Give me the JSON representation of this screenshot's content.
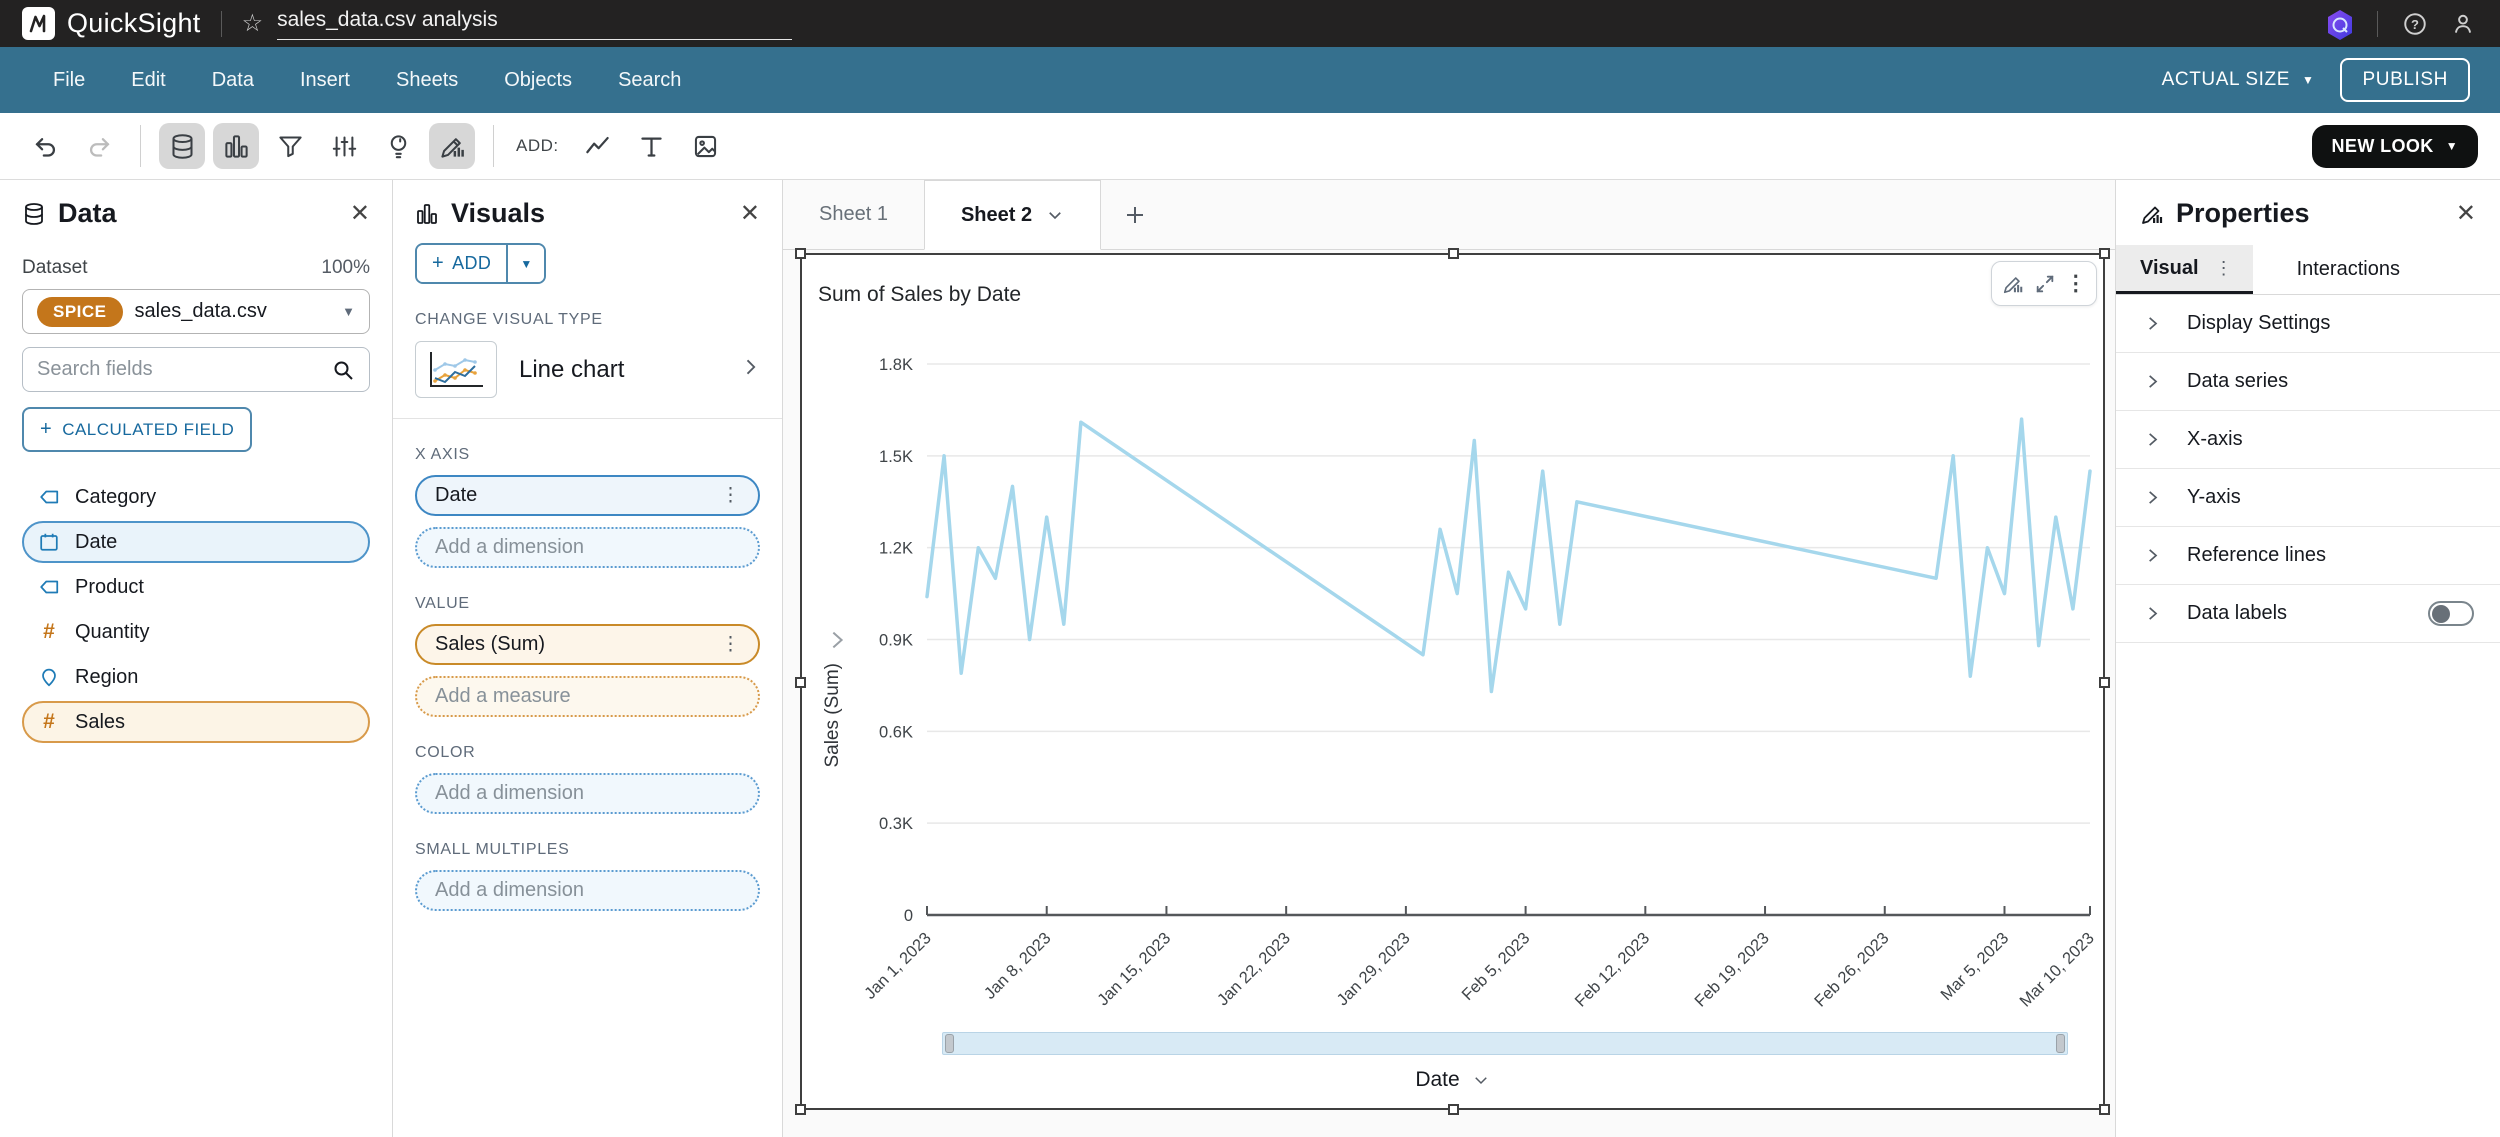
{
  "topbar": {
    "brand": "QuickSight",
    "title": "sales_data.csv analysis"
  },
  "menubar": {
    "items": [
      {
        "label": "File"
      },
      {
        "label": "Edit"
      },
      {
        "label": "Data"
      },
      {
        "label": "Insert"
      },
      {
        "label": "Sheets"
      },
      {
        "label": "Objects"
      },
      {
        "label": "Search"
      }
    ],
    "actual_size": "ACTUAL SIZE",
    "publish": "PUBLISH"
  },
  "toolbar": {
    "add_label": "ADD:",
    "new_look": "NEW LOOK"
  },
  "data_panel": {
    "title": "Data",
    "dataset_label": "Dataset",
    "dataset_progress": "100%",
    "spice_badge": "SPICE",
    "dataset_name": "sales_data.csv",
    "search_placeholder": "Search fields",
    "calculated_field_label": "CALCULATED FIELD",
    "fields": [
      {
        "name": "Category",
        "icon": "tag-icon",
        "selected": false
      },
      {
        "name": "Date",
        "icon": "calendar-icon",
        "selected": true
      },
      {
        "name": "Product",
        "icon": "tag-icon",
        "selected": false
      },
      {
        "name": "Quantity",
        "icon": "hash-icon",
        "selected": false
      },
      {
        "name": "Region",
        "icon": "pin-icon",
        "selected": false
      },
      {
        "name": "Sales",
        "icon": "hash-icon",
        "selected": true
      }
    ],
    "hash_glyph": "#"
  },
  "visuals_panel": {
    "title": "Visuals",
    "add_button": "ADD",
    "change_visual_type": "CHANGE VISUAL TYPE",
    "visual_type": "Line chart",
    "x_axis_label": "X AXIS",
    "x_axis_value": "Date",
    "x_axis_placeholder": "Add a dimension",
    "value_label": "VALUE",
    "value_value": "Sales (Sum)",
    "value_placeholder": "Add a measure",
    "color_label": "COLOR",
    "color_placeholder": "Add a dimension",
    "small_multiples_label": "SMALL MULTIPLES",
    "small_multiples_placeholder": "Add a dimension"
  },
  "sheet_tabs": {
    "tabs": [
      {
        "label": "Sheet 1",
        "active": false
      },
      {
        "label": "Sheet 2",
        "active": true
      }
    ]
  },
  "chart_data": {
    "type": "line",
    "title": "Sum of Sales by Date",
    "xlabel": "Date",
    "ylabel": "Sales (Sum)",
    "ylim": [
      0,
      1800
    ],
    "x_days_total": 68,
    "grid": true,
    "legend": false,
    "y_ticks": [
      {
        "value": 0,
        "label": "0"
      },
      {
        "value": 300,
        "label": "0.3K"
      },
      {
        "value": 600,
        "label": "0.6K"
      },
      {
        "value": 900,
        "label": "0.9K"
      },
      {
        "value": 1200,
        "label": "1.2K"
      },
      {
        "value": 1500,
        "label": "1.5K"
      },
      {
        "value": 1800,
        "label": "1.8K"
      }
    ],
    "x_ticks": [
      {
        "day": 0,
        "label": "Jan 1, 2023"
      },
      {
        "day": 7,
        "label": "Jan 8, 2023"
      },
      {
        "day": 14,
        "label": "Jan 15, 2023"
      },
      {
        "day": 21,
        "label": "Jan 22, 2023"
      },
      {
        "day": 28,
        "label": "Jan 29, 2023"
      },
      {
        "day": 35,
        "label": "Feb 5, 2023"
      },
      {
        "day": 42,
        "label": "Feb 12, 2023"
      },
      {
        "day": 49,
        "label": "Feb 19, 2023"
      },
      {
        "day": 56,
        "label": "Feb 26, 2023"
      },
      {
        "day": 63,
        "label": "Mar 5, 2023"
      },
      {
        "day": 68,
        "label": "Mar 10, 2023"
      }
    ],
    "series": [
      {
        "name": "Sales (Sum)",
        "color": "#a5d7ec",
        "points": [
          {
            "day": 0,
            "date": "Jan 1, 2023",
            "value": 1040
          },
          {
            "day": 1,
            "date": "Jan 2, 2023",
            "value": 1500
          },
          {
            "day": 2,
            "date": "Jan 3, 2023",
            "value": 790
          },
          {
            "day": 3,
            "date": "Jan 4, 2023",
            "value": 1200
          },
          {
            "day": 4,
            "date": "Jan 5, 2023",
            "value": 1100
          },
          {
            "day": 5,
            "date": "Jan 6, 2023",
            "value": 1400
          },
          {
            "day": 6,
            "date": "Jan 7, 2023",
            "value": 900
          },
          {
            "day": 7,
            "date": "Jan 8, 2023",
            "value": 1300
          },
          {
            "day": 8,
            "date": "Jan 9, 2023",
            "value": 950
          },
          {
            "day": 9,
            "date": "Jan 10, 2023",
            "value": 1610
          },
          {
            "day": 29,
            "date": "Jan 30, 2023",
            "value": 850
          },
          {
            "day": 30,
            "date": "Jan 31, 2023",
            "value": 1260
          },
          {
            "day": 31,
            "date": "Feb 1, 2023",
            "value": 1050
          },
          {
            "day": 32,
            "date": "Feb 2, 2023",
            "value": 1550
          },
          {
            "day": 33,
            "date": "Feb 3, 2023",
            "value": 730
          },
          {
            "day": 34,
            "date": "Feb 4, 2023",
            "value": 1120
          },
          {
            "day": 35,
            "date": "Feb 5, 2023",
            "value": 1000
          },
          {
            "day": 36,
            "date": "Feb 6, 2023",
            "value": 1450
          },
          {
            "day": 37,
            "date": "Feb 7, 2023",
            "value": 950
          },
          {
            "day": 38,
            "date": "Feb 8, 2023",
            "value": 1350
          },
          {
            "day": 59,
            "date": "Mar 1, 2023",
            "value": 1100
          },
          {
            "day": 60,
            "date": "Mar 2, 2023",
            "value": 1500
          },
          {
            "day": 61,
            "date": "Mar 3, 2023",
            "value": 780
          },
          {
            "day": 62,
            "date": "Mar 4, 2023",
            "value": 1200
          },
          {
            "day": 63,
            "date": "Mar 5, 2023",
            "value": 1050
          },
          {
            "day": 64,
            "date": "Mar 6, 2023",
            "value": 1620
          },
          {
            "day": 65,
            "date": "Mar 7, 2023",
            "value": 880
          },
          {
            "day": 66,
            "date": "Mar 8, 2023",
            "value": 1300
          },
          {
            "day": 67,
            "date": "Mar 9, 2023",
            "value": 1000
          },
          {
            "day": 68,
            "date": "Mar 10, 2023",
            "value": 1450
          }
        ]
      }
    ]
  },
  "properties_panel": {
    "title": "Properties",
    "tabs": [
      {
        "label": "Visual",
        "active": true
      },
      {
        "label": "Interactions",
        "active": false
      }
    ],
    "sections": [
      {
        "label": "Display Settings"
      },
      {
        "label": "Data series"
      },
      {
        "label": "X-axis"
      },
      {
        "label": "Y-axis"
      },
      {
        "label": "Reference lines"
      },
      {
        "label": "Data labels",
        "toggle": "off"
      }
    ]
  },
  "colors": {
    "topbar": "#232222",
    "menubar": "#35708E",
    "accent_blue": "#1f7bb6",
    "field_orange": "#c4761b",
    "spice_badge": "#c4761b",
    "line_series": "#a5d7ec",
    "selection_border": "#3f3f3f"
  }
}
